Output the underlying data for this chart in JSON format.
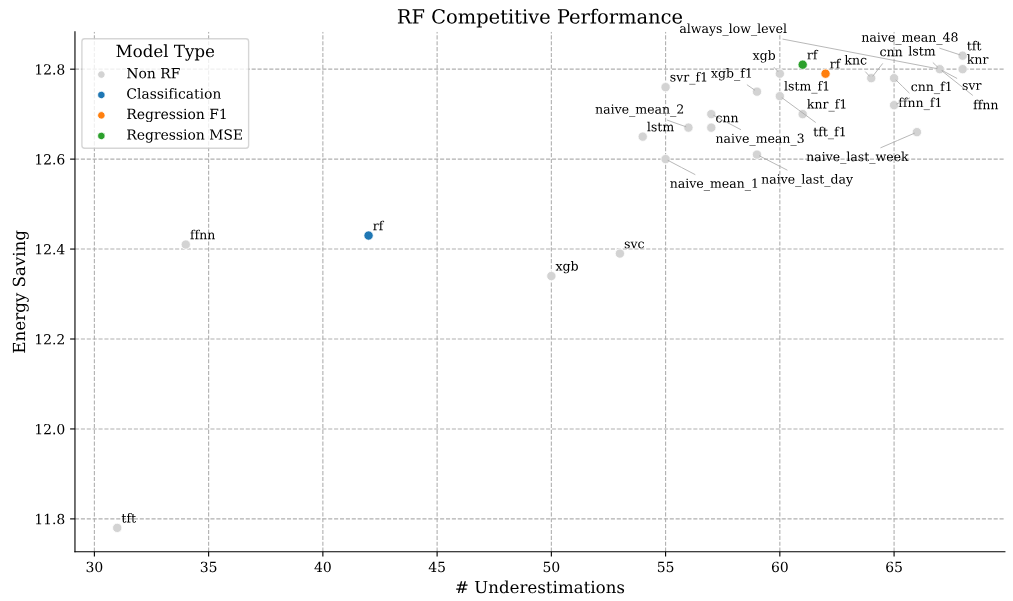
{
  "chart_data": {
    "type": "scatter",
    "title": "RF Competitive Performance",
    "xlabel": "# Underestimations",
    "ylabel": "Energy Saving",
    "legend_title": "Model Type",
    "legend": "top left",
    "grid": true,
    "line_style": "dashed",
    "marker": "circle",
    "xlim": [
      29.15,
      69.85
    ],
    "xticks": [
      30,
      35,
      40,
      45,
      50,
      55,
      60,
      65
    ],
    "ylim": [
      11.727,
      12.883
    ],
    "yticks": [
      {
        "value": 11.8,
        "label": "11.8"
      },
      {
        "value": 12.0,
        "label": "12.0"
      },
      {
        "value": 12.2,
        "label": "12.2"
      },
      {
        "value": 12.4,
        "label": "12.4"
      },
      {
        "value": 12.6,
        "label": "12.6"
      },
      {
        "value": 12.8,
        "label": "12.8"
      }
    ],
    "series": [
      {
        "name": "Non RF",
        "color": "#d3d3d3",
        "x": [
          31,
          34,
          50,
          53,
          55,
          55,
          54,
          57,
          57,
          56,
          59,
          60,
          59,
          60,
          61,
          64,
          65,
          65,
          66,
          68,
          67,
          68
        ],
        "values": [
          11.78,
          12.41,
          12.34,
          12.39,
          12.76,
          12.6,
          12.65,
          12.7,
          12.67,
          12.67,
          12.75,
          12.74,
          12.61,
          12.79,
          12.7,
          12.78,
          12.78,
          12.72,
          12.66,
          12.83,
          12.8,
          12.8
        ]
      },
      {
        "name": "Classification",
        "color": "#1f77b4",
        "x": [
          42
        ],
        "values": [
          12.43
        ]
      },
      {
        "name": "Regression F1",
        "color": "#ff7f0e",
        "x": [
          62
        ],
        "values": [
          12.79
        ]
      },
      {
        "name": "Regression MSE",
        "color": "#2ca02c",
        "x": [
          61
        ],
        "values": [
          12.81
        ]
      }
    ],
    "annotations": [
      {
        "text": "tft",
        "x": 31,
        "y": 11.78
      },
      {
        "text": "ffnn",
        "x": 34,
        "y": 12.41
      },
      {
        "text": "xgb",
        "x": 50,
        "y": 12.34
      },
      {
        "text": "svc",
        "x": 53,
        "y": 12.39
      },
      {
        "text": "rf",
        "x": 42,
        "y": 12.43
      },
      {
        "text": "svr_f1",
        "x": 55,
        "y": 12.76
      },
      {
        "text": "naive_mean_1",
        "x": 55,
        "y": 12.6
      },
      {
        "text": "lstm",
        "x": 54,
        "y": 12.65
      },
      {
        "text": "naive_mean_3",
        "x": 57,
        "y": 12.7
      },
      {
        "text": "cnn",
        "x": 57,
        "y": 12.67
      },
      {
        "text": "naive_mean_2",
        "x": 56,
        "y": 12.67
      },
      {
        "text": "xgb_f1",
        "x": 59,
        "y": 12.75
      },
      {
        "text": "lstm_f1",
        "x": 60,
        "y": 12.74
      },
      {
        "text": "tft_f1",
        "x": 60,
        "y": 12.74
      },
      {
        "text": "naive_last_day",
        "x": 59,
        "y": 12.61
      },
      {
        "text": "xgb",
        "x": 60,
        "y": 12.79
      },
      {
        "text": "knr_f1",
        "x": 61,
        "y": 12.7
      },
      {
        "text": "rf",
        "x": 61,
        "y": 12.81
      },
      {
        "text": "rf",
        "x": 62,
        "y": 12.79
      },
      {
        "text": "knc",
        "x": 64,
        "y": 12.78
      },
      {
        "text": "cnn",
        "x": 64,
        "y": 12.78
      },
      {
        "text": "ffnn_f1",
        "x": 65,
        "y": 12.78
      },
      {
        "text": "cnn_f1",
        "x": 65,
        "y": 12.72
      },
      {
        "text": "naive_last_week",
        "x": 66,
        "y": 12.66
      },
      {
        "text": "naive_mean_48",
        "x": 68,
        "y": 12.83
      },
      {
        "text": "tft",
        "x": 68,
        "y": 12.83
      },
      {
        "text": "lstm",
        "x": 67,
        "y": 12.8
      },
      {
        "text": "svr",
        "x": 67,
        "y": 12.8
      },
      {
        "text": "always_low_level",
        "x": 67,
        "y": 12.8
      },
      {
        "text": "knr",
        "x": 68,
        "y": 12.8
      },
      {
        "text": "ffnn",
        "x": 67,
        "y": 12.8
      }
    ]
  }
}
